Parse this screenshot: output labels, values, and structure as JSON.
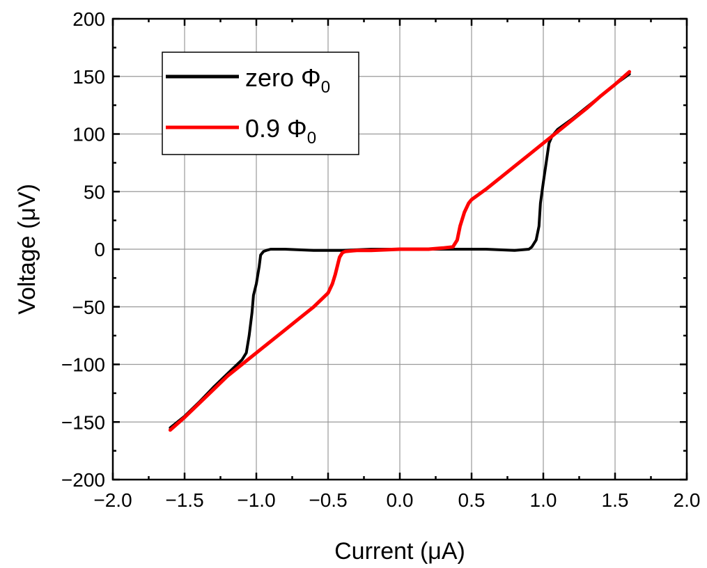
{
  "chart_data": {
    "type": "line",
    "title": "",
    "xlabel": "Current (μA)",
    "ylabel": "Voltage (μV)",
    "xlim": [
      -2.0,
      2.0
    ],
    "ylim": [
      -200,
      200
    ],
    "x_ticks": [
      -2.0,
      -1.5,
      -1.0,
      -0.5,
      0.0,
      0.5,
      1.0,
      1.5,
      2.0
    ],
    "x_tick_labels": [
      "−2.0",
      "−1.5",
      "−1.0",
      "−0.5",
      "0.0",
      "0.5",
      "1.0",
      "1.5",
      "2.0"
    ],
    "y_ticks": [
      -200,
      -150,
      -100,
      -50,
      0,
      50,
      100,
      150,
      200
    ],
    "y_tick_labels": [
      "−200",
      "−150",
      "−100",
      "−50",
      "0",
      "50",
      "100",
      "150",
      "200"
    ],
    "grid": true,
    "legend_position": "top-left",
    "series": [
      {
        "name": "zero Φ",
        "name_subscript": "0",
        "color": "#000000",
        "x": [
          -1.6,
          -1.5,
          -1.4,
          -1.3,
          -1.2,
          -1.1,
          -1.07,
          -1.05,
          -1.03,
          -1.02,
          -1.0,
          -0.98,
          -0.97,
          -0.95,
          -0.93,
          -0.9,
          -0.8,
          -0.6,
          -0.4,
          -0.2,
          0.0,
          0.2,
          0.4,
          0.6,
          0.8,
          0.9,
          0.92,
          0.95,
          0.97,
          0.98,
          1.0,
          1.02,
          1.04,
          1.06,
          1.1,
          1.2,
          1.3,
          1.4,
          1.5,
          1.6
        ],
        "y": [
          -155,
          -145,
          -133,
          -120,
          -108,
          -96,
          -90,
          -75,
          -55,
          -40,
          -30,
          -15,
          -5,
          -2,
          -1,
          0,
          0,
          -1,
          -1,
          0,
          0,
          0,
          0,
          0,
          -1,
          0,
          2,
          8,
          20,
          40,
          58,
          75,
          92,
          98,
          104,
          113,
          123,
          133,
          143,
          152
        ]
      },
      {
        "name": "0.9 Φ",
        "name_subscript": "0",
        "color": "#ff0000",
        "x": [
          -1.6,
          -1.5,
          -1.4,
          -1.3,
          -1.2,
          -1.1,
          -1.0,
          -0.9,
          -0.8,
          -0.7,
          -0.6,
          -0.5,
          -0.47,
          -0.45,
          -0.43,
          -0.42,
          -0.4,
          -0.38,
          -0.3,
          -0.2,
          0.0,
          0.2,
          0.3,
          0.37,
          0.4,
          0.42,
          0.45,
          0.48,
          0.5,
          0.6,
          0.7,
          0.8,
          0.9,
          1.0,
          1.1,
          1.2,
          1.3,
          1.4,
          1.5,
          1.6
        ],
        "y": [
          -157,
          -146,
          -134,
          -122,
          -110,
          -100,
          -90,
          -80,
          -70,
          -60,
          -50,
          -38,
          -30,
          -22,
          -12,
          -7,
          -3,
          -2,
          -1,
          -1,
          0,
          0,
          1,
          2,
          8,
          20,
          32,
          40,
          43,
          52,
          62,
          72,
          82,
          92,
          102,
          112,
          122,
          133,
          143,
          154
        ]
      }
    ]
  }
}
